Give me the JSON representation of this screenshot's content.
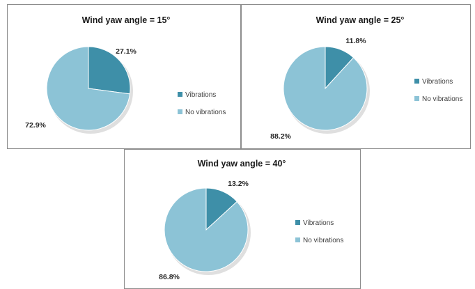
{
  "chart_data": [
    {
      "type": "pie",
      "title": "Wind yaw angle = 15°",
      "categories": [
        "Vibrations",
        "No vibrations"
      ],
      "values": [
        27.1,
        72.9
      ],
      "value_labels": [
        "27.1%",
        "72.9%"
      ],
      "legend": [
        "Vibrations",
        "No vibrations"
      ],
      "legend_position": "right"
    },
    {
      "type": "pie",
      "title": "Wind yaw angle = 25°",
      "categories": [
        "Vibrations",
        "No vibrations"
      ],
      "values": [
        11.8,
        88.2
      ],
      "value_labels": [
        "11.8%",
        "88.2%"
      ],
      "legend": [
        "Vibrations",
        "No vibrations"
      ],
      "legend_position": "right"
    },
    {
      "type": "pie",
      "title": "Wind yaw angle = 40°",
      "categories": [
        "Vibrations",
        "No vibrations"
      ],
      "values": [
        13.2,
        86.8
      ],
      "value_labels": [
        "13.2%",
        "86.8%"
      ],
      "legend": [
        "Vibrations",
        "No vibrations"
      ],
      "legend_position": "right"
    }
  ],
  "colors": {
    "vibrations": "#3e8fa8",
    "no_vibrations": "#8cc3d6",
    "shadow": "#c9c9c9"
  }
}
